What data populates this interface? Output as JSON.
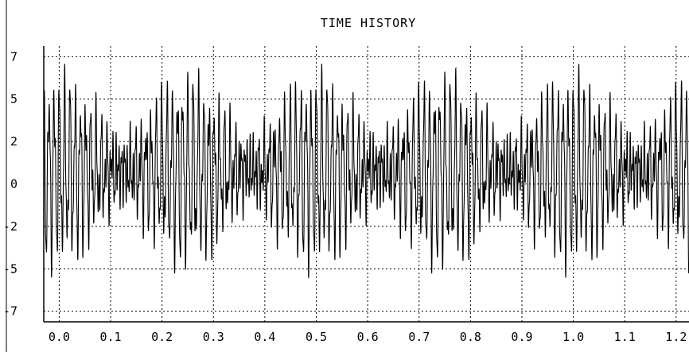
{
  "chart_data": {
    "type": "line",
    "title": "TIME HISTORY",
    "xlabel": "",
    "ylabel": "",
    "xlim": [
      -0.03,
      1.225
    ],
    "ylim": [
      -7.8,
      7.8
    ],
    "grid": true,
    "x_ticks": [
      0.0,
      0.1,
      0.2,
      0.3,
      0.4,
      0.5,
      0.6,
      0.7,
      0.8,
      0.9,
      1.0,
      1.1,
      1.2
    ],
    "x_tick_labels": [
      "0.0",
      "0.1",
      "0.2",
      "0.3",
      "0.4",
      "0.5",
      "0.6",
      "0.7",
      "0.8",
      "0.9",
      "1.0",
      "1.1",
      "1.2"
    ],
    "y_ticks": [
      7,
      5,
      2,
      0,
      -2,
      -5,
      -7
    ],
    "y_tick_labels": [
      "7",
      "5",
      "2",
      "0",
      "-2",
      "-5",
      "-7"
    ],
    "y_tick_values": [
      7.2,
      4.8,
      2.4,
      0,
      -2.4,
      -4.8,
      -7.2
    ],
    "series": [
      {
        "signal": {
          "components": [
            {
              "freq_hz": 96,
              "amplitude": 2.0
            },
            {
              "freq_hz": 100,
              "amplitude": 2.0
            },
            {
              "freq_hz": 180,
              "amplitude": 1.2
            },
            {
              "freq_hz": 330,
              "amplitude": 0.8
            }
          ],
          "peak_range": [
            -5.3,
            6.8
          ]
        },
        "x_range": [
          -0.03,
          1.225
        ],
        "color": "#000000"
      }
    ]
  }
}
